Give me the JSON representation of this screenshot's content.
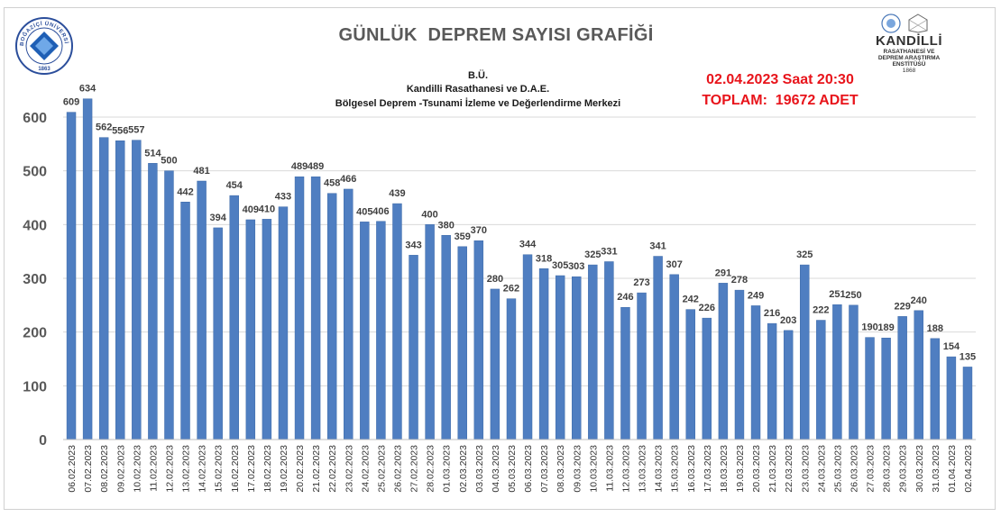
{
  "header": {
    "title": "GÜNLÜK  DEPREM SAYISI GRAFİĞİ",
    "subtitle_lines": [
      "B.Ü.",
      "Kandilli Rasathanesi ve D.A.E.",
      "Bölgesel Deprem -Tsunami İzleme ve Değerlendirme Merkezi"
    ],
    "timestamp": "02.04.2023 Saat 20:30",
    "total": "TOPLAM:  19672 ADET"
  },
  "logo_left": {
    "icon": "bogazici-university-seal-icon",
    "text_arc": "BOĞAZİÇİ ÜNİVERSİTESİ",
    "year": "1863"
  },
  "logo_right": {
    "icon": "kandilli-observatory-logo-icon",
    "name": "KANDİLLİ",
    "line1": "RASATHANESİ VE",
    "line2": "DEPREM ARAŞTIRMA",
    "line3": "ENSTİTÜSÜ",
    "year": "1868"
  },
  "colors": {
    "bar": "#4f7ec1",
    "bar_edge": "#3d6aa8",
    "title": "#595959",
    "highlight": "#e8141b",
    "grid": "#d9d9d9"
  },
  "chart_data": {
    "type": "bar",
    "title": "GÜNLÜK  DEPREM SAYISI GRAFİĞİ",
    "xlabel": "",
    "ylabel": "",
    "ylim": [
      0,
      650
    ],
    "yticks": [
      0,
      100,
      200,
      300,
      400,
      500,
      600
    ],
    "grid": true,
    "legend": "none",
    "categories": [
      "06.02.2023",
      "07.02.2023",
      "08.02.2023",
      "09.02.2023",
      "10.02.2023",
      "11.02.2023",
      "12.02.2023",
      "13.02.2023",
      "14.02.2023",
      "15.02.2023",
      "16.02.2023",
      "17.02.2023",
      "18.02.2023",
      "19.02.2023",
      "20.02.2023",
      "21.02.2023",
      "22.02.2023",
      "23.02.2023",
      "24.02.2023",
      "25.02.2023",
      "26.02.2023",
      "27.02.2023",
      "28.02.2023",
      "01.03.2023",
      "02.03.2023",
      "03.03.2023",
      "04.03.2023",
      "05.03.2023",
      "06.03.2023",
      "07.03.2023",
      "08.03.2023",
      "09.03.2023",
      "10.03.2023",
      "11.03.2023",
      "12.03.2023",
      "13.03.2023",
      "14.03.2023",
      "15.03.2023",
      "16.03.2023",
      "17.03.2023",
      "18.03.2023",
      "19.03.2023",
      "20.03.2023",
      "21.03.2023",
      "22.03.2023",
      "23.03.2023",
      "24.03.2023",
      "25.03.2023",
      "26.03.2023",
      "27.03.2023",
      "28.03.2023",
      "29.03.2023",
      "30.03.2023",
      "31.03.2023",
      "01.04.2023",
      "02.04.2023"
    ],
    "values": [
      609,
      634,
      562,
      556,
      557,
      514,
      500,
      442,
      481,
      394,
      454,
      409,
      410,
      433,
      489,
      489,
      458,
      466,
      405,
      406,
      439,
      343,
      400,
      380,
      359,
      370,
      280,
      262,
      344,
      318,
      305,
      303,
      325,
      331,
      246,
      273,
      341,
      307,
      242,
      226,
      291,
      278,
      249,
      216,
      203,
      325,
      222,
      251,
      250,
      190,
      189,
      229,
      240,
      188,
      154,
      135
    ]
  }
}
